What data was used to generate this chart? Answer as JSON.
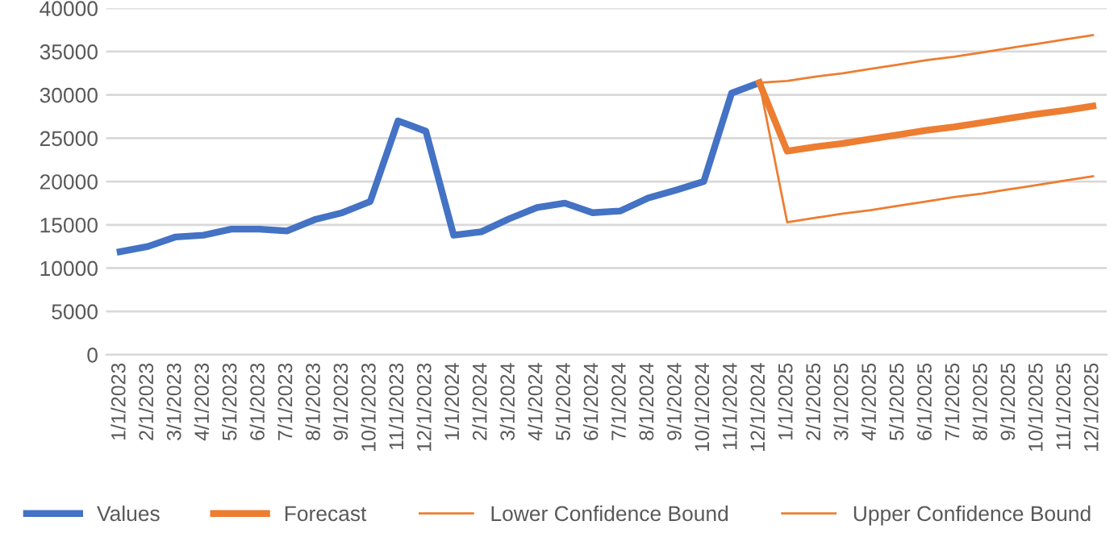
{
  "chart_data": {
    "type": "line",
    "categories": [
      "1/1/2023",
      "2/1/2023",
      "3/1/2023",
      "4/1/2023",
      "5/1/2023",
      "6/1/2023",
      "7/1/2023",
      "8/1/2023",
      "9/1/2023",
      "10/1/2023",
      "11/1/2023",
      "12/1/2023",
      "1/1/2024",
      "2/1/2024",
      "3/1/2024",
      "4/1/2024",
      "5/1/2024",
      "6/1/2024",
      "7/1/2024",
      "8/1/2024",
      "9/1/2024",
      "10/1/2024",
      "11/1/2024",
      "12/1/2024",
      "1/1/2025",
      "2/1/2025",
      "3/1/2025",
      "4/1/2025",
      "5/1/2025",
      "6/1/2025",
      "7/1/2025",
      "8/1/2025",
      "9/1/2025",
      "10/1/2025",
      "11/1/2025",
      "12/1/2025"
    ],
    "series": [
      {
        "name": "Values",
        "color": "#4472c4",
        "values": [
          11900,
          12500,
          13600,
          13800,
          14500,
          14500,
          14300,
          15600,
          16400,
          17700,
          27000,
          25800,
          13800,
          14200,
          15700,
          17000,
          17500,
          16400,
          16600,
          18100,
          19000,
          20000,
          30200,
          31400,
          null,
          null,
          null,
          null,
          null,
          null,
          null,
          null,
          null,
          null,
          null,
          null
        ]
      },
      {
        "name": "Forecast",
        "color": "#ed7d31",
        "values": [
          null,
          null,
          null,
          null,
          null,
          null,
          null,
          null,
          null,
          null,
          null,
          null,
          null,
          null,
          null,
          null,
          null,
          null,
          null,
          null,
          null,
          null,
          null,
          31400,
          23500,
          24000,
          24400,
          24900,
          25400,
          25900,
          26300,
          26800,
          27300,
          27800,
          28200,
          28700
        ]
      },
      {
        "name": "Lower Confidence Bound",
        "color": "#ed7d31",
        "values": [
          null,
          null,
          null,
          null,
          null,
          null,
          null,
          null,
          null,
          null,
          null,
          null,
          null,
          null,
          null,
          null,
          null,
          null,
          null,
          null,
          null,
          null,
          null,
          31400,
          15300,
          15800,
          16300,
          16700,
          17200,
          17700,
          18200,
          18600,
          19100,
          19600,
          20100,
          20600
        ]
      },
      {
        "name": "Upper Confidence Bound",
        "color": "#ed7d31",
        "values": [
          null,
          null,
          null,
          null,
          null,
          null,
          null,
          null,
          null,
          null,
          null,
          null,
          null,
          null,
          null,
          null,
          null,
          null,
          null,
          null,
          null,
          null,
          null,
          31400,
          31600,
          32100,
          32500,
          33000,
          33500,
          34000,
          34400,
          34900,
          35400,
          35900,
          36400,
          36900
        ]
      }
    ],
    "ylim": [
      0,
      40000
    ],
    "yticks": [
      0,
      5000,
      10000,
      15000,
      20000,
      25000,
      30000,
      35000,
      40000
    ],
    "grid": "y",
    "legend": "bottom",
    "marker": "none",
    "line_style": "solid"
  }
}
